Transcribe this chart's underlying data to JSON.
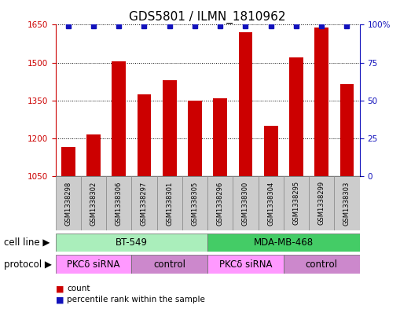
{
  "title": "GDS5801 / ILMN_1810962",
  "samples": [
    "GSM1338298",
    "GSM1338302",
    "GSM1338306",
    "GSM1338297",
    "GSM1338301",
    "GSM1338305",
    "GSM1338296",
    "GSM1338300",
    "GSM1338304",
    "GSM1338295",
    "GSM1338299",
    "GSM1338303"
  ],
  "counts": [
    1165,
    1215,
    1505,
    1375,
    1430,
    1350,
    1360,
    1620,
    1250,
    1520,
    1640,
    1415
  ],
  "percentile_value": 99,
  "ylim_left": [
    1050,
    1650
  ],
  "ylim_right": [
    0,
    100
  ],
  "yticks_left": [
    1050,
    1200,
    1350,
    1500,
    1650
  ],
  "yticks_right": [
    0,
    25,
    50,
    75,
    100
  ],
  "bar_color": "#cc0000",
  "dot_color": "#1111bb",
  "cell_lines": [
    {
      "label": "BT-549",
      "start": 0,
      "end": 6,
      "color": "#aaeebb"
    },
    {
      "label": "MDA-MB-468",
      "start": 6,
      "end": 12,
      "color": "#44cc66"
    }
  ],
  "protocols": [
    {
      "label": "PKCδ siRNA",
      "start": 0,
      "end": 3,
      "color": "#ff99ff"
    },
    {
      "label": "control",
      "start": 3,
      "end": 6,
      "color": "#cc88cc"
    },
    {
      "label": "PKCδ siRNA",
      "start": 6,
      "end": 9,
      "color": "#ff99ff"
    },
    {
      "label": "control",
      "start": 9,
      "end": 12,
      "color": "#cc88cc"
    }
  ],
  "cell_line_label": "cell line",
  "protocol_label": "protocol",
  "legend_count_label": "count",
  "legend_percentile_label": "percentile rank within the sample",
  "bar_width": 0.55,
  "title_fontsize": 11,
  "tick_fontsize": 7.5,
  "label_fontsize": 8.5,
  "sample_fontsize": 6,
  "annotation_fontsize": 7.5
}
